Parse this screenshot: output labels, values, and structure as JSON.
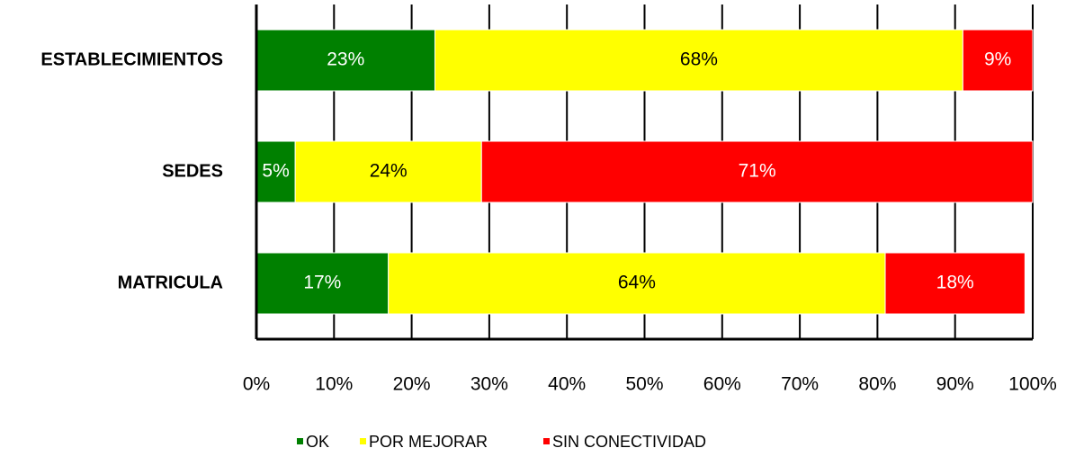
{
  "chart_data": {
    "type": "stacked-bar-horizontal",
    "categories": [
      "ESTABLECIMIENTOS",
      "SEDES",
      "MATRICULA"
    ],
    "series": [
      {
        "name": "OK",
        "color": "#008000",
        "values": [
          23,
          5,
          17
        ],
        "value_labels": [
          "23%",
          "5%",
          "17%"
        ]
      },
      {
        "name": "POR MEJORAR",
        "color": "#ffff00",
        "values": [
          68,
          24,
          64
        ],
        "value_labels": [
          "68%",
          "24%",
          "64%"
        ]
      },
      {
        "name": "SIN CONECTIVIDAD",
        "color": "#ff0000",
        "values": [
          9,
          71,
          18
        ],
        "value_labels": [
          "9%",
          "71%",
          "18%"
        ]
      }
    ],
    "xlim": [
      0,
      100
    ],
    "xticks": [
      {
        "value": 0,
        "label": "0%"
      },
      {
        "value": 10,
        "label": "10%"
      },
      {
        "value": 20,
        "label": "20%"
      },
      {
        "value": 30,
        "label": "30%"
      },
      {
        "value": 40,
        "label": "40%"
      },
      {
        "value": 50,
        "label": "50%"
      },
      {
        "value": 60,
        "label": "60%"
      },
      {
        "value": 70,
        "label": "70%"
      },
      {
        "value": 80,
        "label": "80%"
      },
      {
        "value": 90,
        "label": "90%"
      },
      {
        "value": 100,
        "label": "100%"
      }
    ],
    "grid": true,
    "legend": "bottom"
  }
}
